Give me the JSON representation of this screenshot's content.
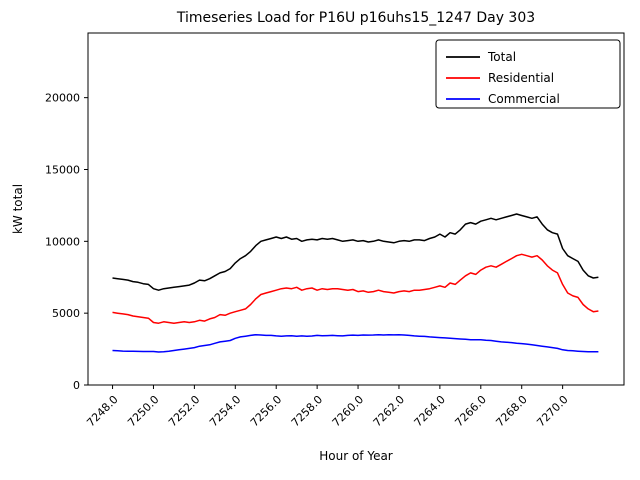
{
  "title": "Timeseries Load for P16U p16uhs15_1247  Day 303",
  "chart_data": {
    "type": "line",
    "title": "Timeseries Load for P16U p16uhs15_1247  Day 303",
    "xlabel": "Hour of Year",
    "ylabel": "kW total",
    "xlim": [
      7246.8,
      7273.0
    ],
    "ylim": [
      0,
      24500
    ],
    "grid": false,
    "xticks": [
      7248,
      7250,
      7252,
      7254,
      7256,
      7258,
      7260,
      7262,
      7264,
      7266,
      7268,
      7270
    ],
    "xtick_labels": [
      "7248.0",
      "7250.0",
      "7252.0",
      "7254.0",
      "7256.0",
      "7258.0",
      "7260.0",
      "7262.0",
      "7264.0",
      "7266.0",
      "7268.0",
      "7270.0"
    ],
    "yticks": [
      0,
      5000,
      10000,
      15000,
      20000
    ],
    "ytick_labels": [
      "0",
      "5000",
      "10000",
      "15000",
      "20000"
    ],
    "x_start": 7248.0,
    "x_step": 0.25,
    "legend": {
      "position": "upper right",
      "entries": [
        {
          "label": "Total",
          "color": "#000000"
        },
        {
          "label": "Residential",
          "color": "#ff0000"
        },
        {
          "label": "Commercial",
          "color": "#0000ff"
        }
      ]
    },
    "series": [
      {
        "name": "Total",
        "color": "#000000",
        "values": [
          7450,
          7400,
          7350,
          7300,
          7200,
          7150,
          7050,
          7000,
          6700,
          6600,
          6700,
          6750,
          6800,
          6850,
          6900,
          6950,
          7100,
          7300,
          7250,
          7400,
          7600,
          7800,
          7900,
          8100,
          8500,
          8800,
          9000,
          9300,
          9700,
          10000,
          10100,
          10200,
          10300,
          10200,
          10300,
          10150,
          10200,
          10000,
          10100,
          10150,
          10100,
          10200,
          10150,
          10200,
          10100,
          10000,
          10050,
          10100,
          10000,
          10050,
          9950,
          10000,
          10100,
          10000,
          9950,
          9900,
          10000,
          10050,
          10000,
          10100,
          10100,
          10050,
          10200,
          10300,
          10500,
          10300,
          10600,
          10500,
          10800,
          11200,
          11300,
          11200,
          11400,
          11500,
          11600,
          11500,
          11600,
          11700,
          11800,
          11900,
          11800,
          11700,
          11600,
          11700,
          11200,
          10800,
          10600,
          10500,
          9500,
          9000,
          8800,
          8600,
          8000,
          7600,
          7450,
          7500
        ]
      },
      {
        "name": "Residential",
        "color": "#ff0000",
        "values": [
          5050,
          5000,
          4950,
          4900,
          4800,
          4750,
          4700,
          4650,
          4350,
          4300,
          4400,
          4350,
          4300,
          4350,
          4400,
          4350,
          4400,
          4500,
          4450,
          4600,
          4700,
          4900,
          4850,
          5000,
          5100,
          5200,
          5300,
          5600,
          6000,
          6300,
          6400,
          6500,
          6600,
          6700,
          6750,
          6700,
          6800,
          6600,
          6700,
          6750,
          6600,
          6700,
          6650,
          6700,
          6700,
          6650,
          6600,
          6650,
          6500,
          6550,
          6450,
          6500,
          6600,
          6500,
          6450,
          6400,
          6500,
          6550,
          6500,
          6600,
          6600,
          6650,
          6700,
          6800,
          6900,
          6800,
          7100,
          7000,
          7300,
          7600,
          7800,
          7700,
          8000,
          8200,
          8300,
          8200,
          8400,
          8600,
          8800,
          9000,
          9100,
          9000,
          8900,
          9000,
          8700,
          8300,
          8000,
          7800,
          7000,
          6400,
          6200,
          6100,
          5600,
          5300,
          5100,
          5150
        ]
      },
      {
        "name": "Commercial",
        "color": "#0000ff",
        "values": [
          2400,
          2380,
          2360,
          2350,
          2350,
          2340,
          2330,
          2330,
          2330,
          2300,
          2320,
          2350,
          2400,
          2450,
          2500,
          2550,
          2600,
          2700,
          2750,
          2800,
          2900,
          3000,
          3050,
          3100,
          3250,
          3350,
          3400,
          3450,
          3500,
          3480,
          3450,
          3450,
          3420,
          3400,
          3420,
          3430,
          3400,
          3420,
          3400,
          3410,
          3450,
          3430,
          3440,
          3450,
          3430,
          3420,
          3450,
          3470,
          3450,
          3480,
          3470,
          3480,
          3500,
          3480,
          3500,
          3490,
          3500,
          3480,
          3450,
          3420,
          3400,
          3380,
          3350,
          3330,
          3300,
          3280,
          3250,
          3230,
          3200,
          3180,
          3150,
          3150,
          3150,
          3120,
          3100,
          3050,
          3000,
          2980,
          2950,
          2900,
          2880,
          2850,
          2800,
          2750,
          2700,
          2650,
          2600,
          2550,
          2450,
          2400,
          2380,
          2350,
          2330,
          2320,
          2310,
          2320
        ]
      }
    ]
  }
}
